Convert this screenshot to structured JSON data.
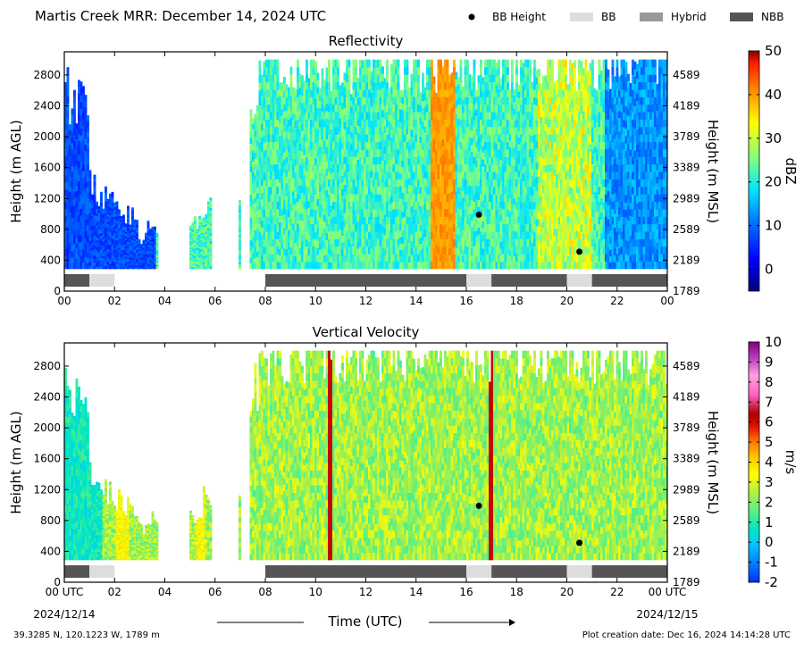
{
  "header": {
    "title": "Martis Creek MRR:  December 14, 2024 UTC",
    "legend": [
      {
        "label": "BB Height",
        "kind": "dot",
        "color": "#000000"
      },
      {
        "label": "BB",
        "kind": "box",
        "color": "#dddddd"
      },
      {
        "label": "Hybrid",
        "kind": "box",
        "color": "#999999"
      },
      {
        "label": "NBB",
        "kind": "box",
        "color": "#555555"
      }
    ]
  },
  "footer": {
    "location": "39.3285 N, 120.1223 W, 1789 m",
    "created": "Plot creation date: Dec 16, 2024 14:14:28 UTC",
    "xlabel": "Time (UTC)",
    "date_start": "2024/12/14",
    "date_end": "2024/12/15"
  },
  "chart_data": [
    {
      "type": "heatmap",
      "title": "Reflectivity",
      "ylabel": "Height (m AGL)",
      "ylabel_right": "Height (m MSL)",
      "x_range_hours": [
        0,
        24
      ],
      "xticks": [
        "00",
        "02",
        "04",
        "06",
        "08",
        "10",
        "12",
        "14",
        "16",
        "18",
        "20",
        "22",
        "00"
      ],
      "y_range": [
        0,
        3100
      ],
      "yticks": [
        0,
        400,
        800,
        1200,
        1600,
        2000,
        2400,
        2800
      ],
      "yticks_right": [
        "1789",
        "2189",
        "2589",
        "2989",
        "3389",
        "3789",
        "4189",
        "4589"
      ],
      "colorbar": {
        "label": "dBZ",
        "min": -5,
        "max": 50,
        "ticks": [
          0,
          10,
          20,
          30,
          40,
          50
        ]
      },
      "bb_height_points": [
        {
          "hour": 16.5,
          "height": 990
        },
        {
          "hour": 20.5,
          "height": 510
        }
      ],
      "classification": [
        {
          "start": 0.0,
          "end": 1.0,
          "class": "NBB"
        },
        {
          "start": 1.0,
          "end": 2.0,
          "class": "BB"
        },
        {
          "start": 8.0,
          "end": 16.0,
          "class": "NBB"
        },
        {
          "start": 16.0,
          "end": 17.0,
          "class": "BB"
        },
        {
          "start": 17.0,
          "end": 20.0,
          "class": "NBB"
        },
        {
          "start": 20.0,
          "end": 21.0,
          "class": "BB"
        },
        {
          "start": 21.0,
          "end": 24.0,
          "class": "NBB"
        }
      ]
    },
    {
      "type": "heatmap",
      "title": "Vertical Velocity",
      "ylabel": "Height (m AGL)",
      "ylabel_right": "Height (m MSL)",
      "x_range_hours": [
        0,
        24
      ],
      "xticks": [
        "00 UTC",
        "02",
        "04",
        "06",
        "08",
        "10",
        "12",
        "14",
        "16",
        "18",
        "20",
        "22",
        "00 UTC"
      ],
      "y_range": [
        0,
        3100
      ],
      "yticks": [
        0,
        400,
        800,
        1200,
        1600,
        2000,
        2400,
        2800
      ],
      "yticks_right": [
        "1789",
        "2189",
        "2589",
        "2989",
        "3389",
        "3789",
        "4189",
        "4589"
      ],
      "colorbar": {
        "label": "m/s",
        "min": -2,
        "max": 10,
        "ticks": [
          -2,
          -1,
          0,
          1,
          2,
          3,
          4,
          5,
          6,
          7,
          8,
          9,
          10
        ]
      },
      "bb_height_points": [
        {
          "hour": 16.5,
          "height": 990
        },
        {
          "hour": 20.5,
          "height": 510
        }
      ],
      "classification": [
        {
          "start": 0.0,
          "end": 1.0,
          "class": "NBB"
        },
        {
          "start": 1.0,
          "end": 2.0,
          "class": "BB"
        },
        {
          "start": 8.0,
          "end": 16.0,
          "class": "NBB"
        },
        {
          "start": 16.0,
          "end": 17.0,
          "class": "BB"
        },
        {
          "start": 17.0,
          "end": 20.0,
          "class": "NBB"
        },
        {
          "start": 20.0,
          "end": 21.0,
          "class": "BB"
        },
        {
          "start": 21.0,
          "end": 24.0,
          "class": "NBB"
        }
      ]
    }
  ]
}
